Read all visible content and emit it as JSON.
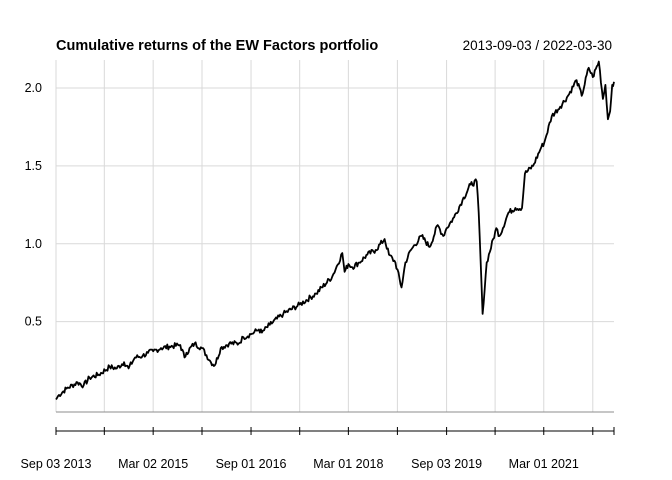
{
  "chart_data": {
    "type": "line",
    "title": "Cumulative returns of the EW Factors portfolio",
    "period_label": "2013-09-03 / 2022-03-30",
    "xlabel": "",
    "ylabel": "",
    "x_range": [
      "2013-09-03",
      "2022-03-30"
    ],
    "ylim": [
      -0.08,
      2.18
    ],
    "grid": true,
    "legend": "none",
    "line_color": "#000000",
    "grid_color": "#d9d9d9",
    "y_ticks": [
      {
        "value": 0.5,
        "label": "0.5"
      },
      {
        "value": 1.0,
        "label": "1.0"
      },
      {
        "value": 1.5,
        "label": "1.5"
      },
      {
        "value": 2.0,
        "label": "2.0"
      }
    ],
    "x_ticks": [
      {
        "date": "2013-09-03",
        "label": "Sep 03 2013"
      },
      {
        "date": "2015-03-02",
        "label": "Mar 02 2015"
      },
      {
        "date": "2016-09-01",
        "label": "Sep 01 2016"
      },
      {
        "date": "2018-03-01",
        "label": "Mar 01 2018"
      },
      {
        "date": "2019-09-03",
        "label": "Sep 03 2019"
      },
      {
        "date": "2021-03-01",
        "label": "Mar 01 2021"
      }
    ],
    "minor_x_ticks": [
      "2014-06-01",
      "2015-12-01",
      "2017-06-01",
      "2018-12-01",
      "2020-06-01",
      "2021-12-01"
    ],
    "series": [
      {
        "x": [
          "2013-09-03",
          "2013-09-20",
          "2013-11-01",
          "2014-01-02",
          "2014-02-05",
          "2014-03-10",
          "2014-05-01",
          "2014-07-01",
          "2014-08-10",
          "2014-09-20",
          "2014-10-15",
          "2014-11-20",
          "2015-01-02",
          "2015-02-01",
          "2015-03-02",
          "2015-04-15",
          "2015-06-01",
          "2015-08-01",
          "2015-08-25",
          "2015-09-05",
          "2015-10-20",
          "2015-12-01",
          "2016-01-20",
          "2016-02-11",
          "2016-03-15",
          "2016-05-01",
          "2016-06-24",
          "2016-07-20",
          "2016-09-01",
          "2016-10-15",
          "2016-11-01",
          "2016-12-15",
          "2017-03-01",
          "2017-06-01",
          "2017-09-01",
          "2017-12-01",
          "2018-01-26",
          "2018-02-08",
          "2018-03-01",
          "2018-03-23",
          "2018-05-01",
          "2018-06-15",
          "2018-08-01",
          "2018-09-20",
          "2018-10-15",
          "2018-11-20",
          "2018-12-24",
          "2019-01-15",
          "2019-02-15",
          "2019-04-15",
          "2019-05-31",
          "2019-07-15",
          "2019-08-15",
          "2019-09-03",
          "2019-10-15",
          "2019-12-01",
          "2020-01-15",
          "2020-02-19",
          "2020-03-01",
          "2020-03-23",
          "2020-04-15",
          "2020-06-08",
          "2020-06-26",
          "2020-08-15",
          "2020-09-23",
          "2020-10-30",
          "2020-11-15",
          "2020-12-31",
          "2021-02-15",
          "2021-03-04",
          "2021-04-15",
          "2021-06-01",
          "2021-07-15",
          "2021-09-01",
          "2021-09-30",
          "2021-11-08",
          "2021-12-01",
          "2022-01-04",
          "2022-01-27",
          "2022-02-10",
          "2022-02-24",
          "2022-03-08",
          "2022-03-20",
          "2022-03-30"
        ],
        "values": [
          0.0,
          0.03,
          0.07,
          0.11,
          0.09,
          0.14,
          0.16,
          0.21,
          0.2,
          0.24,
          0.2,
          0.27,
          0.28,
          0.3,
          0.31,
          0.33,
          0.34,
          0.35,
          0.27,
          0.3,
          0.36,
          0.33,
          0.24,
          0.22,
          0.33,
          0.36,
          0.36,
          0.4,
          0.42,
          0.45,
          0.43,
          0.48,
          0.55,
          0.61,
          0.68,
          0.79,
          0.94,
          0.82,
          0.87,
          0.85,
          0.88,
          0.93,
          0.96,
          1.03,
          0.93,
          0.88,
          0.72,
          0.88,
          0.96,
          1.05,
          0.98,
          1.12,
          1.05,
          1.1,
          1.17,
          1.28,
          1.38,
          1.4,
          1.2,
          0.55,
          0.88,
          1.1,
          1.05,
          1.2,
          1.23,
          1.23,
          1.45,
          1.5,
          1.62,
          1.65,
          1.82,
          1.88,
          1.95,
          2.05,
          1.95,
          2.13,
          2.07,
          2.17,
          1.93,
          2.02,
          1.8,
          1.85,
          2.02,
          2.04
        ]
      }
    ]
  }
}
